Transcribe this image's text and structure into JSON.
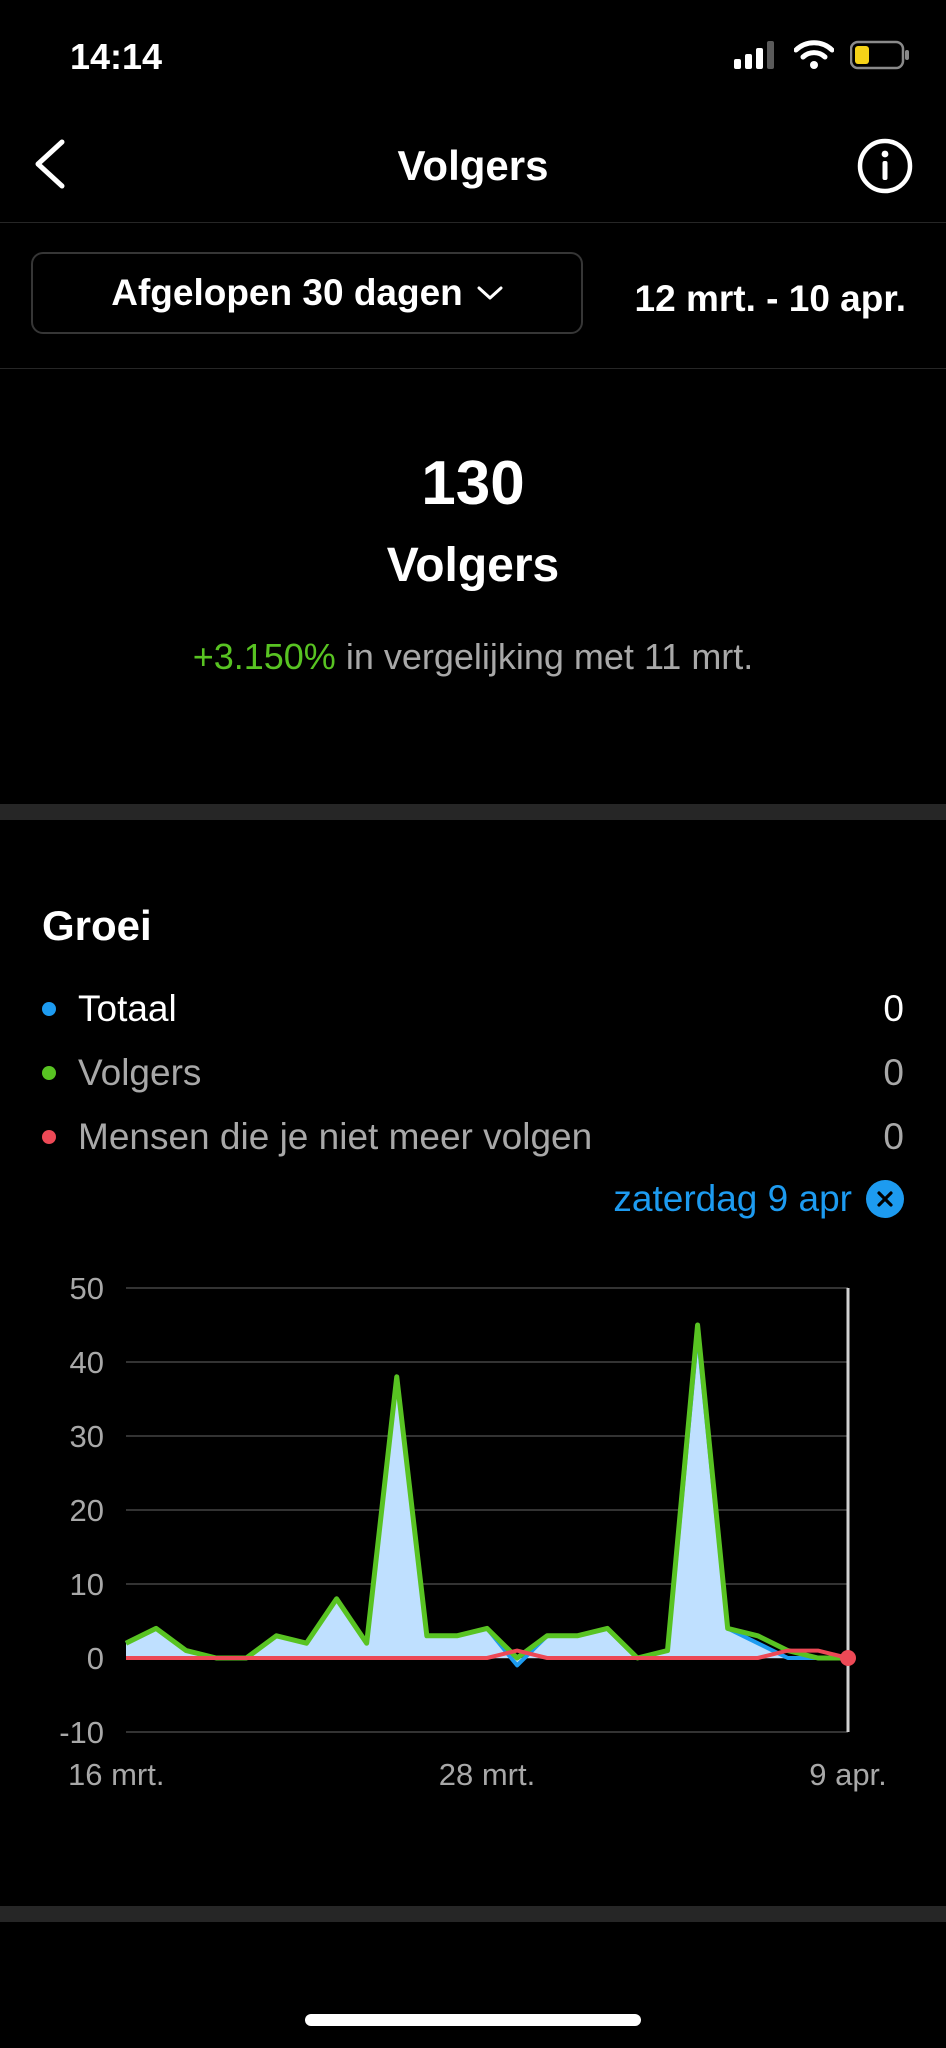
{
  "status": {
    "time": "14:14"
  },
  "nav": {
    "title": "Volgers"
  },
  "filter": {
    "range_label": "Afgelopen 30 dagen",
    "date_range": "12 mrt. - 10 apr."
  },
  "summary": {
    "count": "130",
    "label": "Volgers",
    "change_pct": "+3.150%",
    "change_text": " in vergelijking met 11 mrt."
  },
  "growth": {
    "title": "Groei",
    "legend": [
      {
        "label": "Totaal",
        "value": "0",
        "color": "#1d9bf0"
      },
      {
        "label": "Volgers",
        "value": "0",
        "color": "#58c322"
      },
      {
        "label": "Mensen die je niet meer volgen",
        "value": "0",
        "color": "#ed4956"
      }
    ],
    "selected_date": "zaterdag 9 apr"
  },
  "chart_data": {
    "type": "area",
    "x": [
      "16 mrt.",
      "17 mrt.",
      "18 mrt.",
      "19 mrt.",
      "20 mrt.",
      "21 mrt.",
      "22 mrt.",
      "23 mrt.",
      "24 mrt.",
      "25 mrt.",
      "26 mrt.",
      "27 mrt.",
      "28 mrt.",
      "29 mrt.",
      "30 mrt.",
      "31 mrt.",
      "1 apr.",
      "2 apr.",
      "3 apr.",
      "4 apr.",
      "5 apr.",
      "6 apr.",
      "7 apr.",
      "8 apr.",
      "9 apr."
    ],
    "x_ticks": [
      "16 mrt.",
      "28 mrt.",
      "9 apr."
    ],
    "y_ticks": [
      "50",
      "40",
      "30",
      "20",
      "10",
      "0",
      "-10"
    ],
    "ylim": [
      -10,
      50
    ],
    "series": [
      {
        "name": "Totaal",
        "color": "#1d9bf0",
        "values": [
          2,
          4,
          1,
          0,
          0,
          3,
          2,
          8,
          2,
          38,
          3,
          3,
          4,
          -1,
          3,
          3,
          4,
          0,
          1,
          44,
          4,
          2,
          0,
          0,
          0
        ]
      },
      {
        "name": "Volgers",
        "color": "#58c322",
        "values": [
          2,
          4,
          1,
          0,
          0,
          3,
          2,
          8,
          2,
          38,
          3,
          3,
          4,
          0,
          3,
          3,
          4,
          0,
          1,
          45,
          4,
          3,
          1,
          0,
          0
        ]
      },
      {
        "name": "Mensen die je niet meer volgen",
        "color": "#ed4956",
        "values": [
          0,
          0,
          0,
          0,
          0,
          0,
          0,
          0,
          0,
          0,
          0,
          0,
          0,
          1,
          0,
          0,
          0,
          0,
          0,
          0,
          0,
          0,
          1,
          1,
          0
        ]
      }
    ],
    "area_fill": "#bfe0ff",
    "selected_x": "9 apr."
  }
}
